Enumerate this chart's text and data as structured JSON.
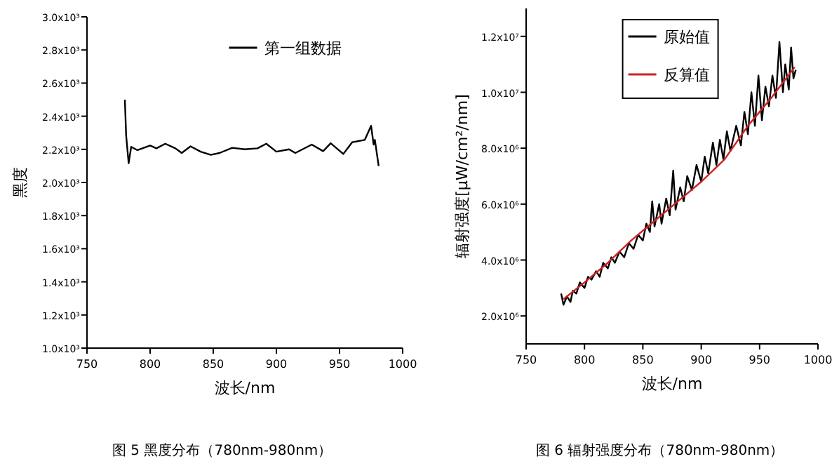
{
  "chart_data": [
    {
      "type": "line",
      "xlabel": "波长/nm",
      "ylabel": "黑度",
      "legend": "top right",
      "annotations": [
        "图 5  黑度分布（780nm-980nm）"
      ],
      "xlim": [
        750,
        1000
      ],
      "xticks": [
        750,
        800,
        850,
        900,
        950,
        1000
      ],
      "ylim": [
        1000,
        3000
      ],
      "yticks": [
        {
          "value": 1000,
          "label": "1.0x10³"
        },
        {
          "value": 1200,
          "label": "1.2x10³"
        },
        {
          "value": 1400,
          "label": "1.4x10³"
        },
        {
          "value": 1600,
          "label": "1.6x10³"
        },
        {
          "value": 1800,
          "label": "1.8x10³"
        },
        {
          "value": 2000,
          "label": "2.0x10³"
        },
        {
          "value": 2200,
          "label": "2.2x10³"
        },
        {
          "value": 2400,
          "label": "2.4x10³"
        },
        {
          "value": 2600,
          "label": "2.6x10³"
        },
        {
          "value": 2800,
          "label": "2.8x10³"
        },
        {
          "value": 3000,
          "label": "3.0x10³"
        }
      ],
      "series": [
        {
          "name": "第一组数据",
          "color": "#000000",
          "x": [
            780,
            781,
            783,
            785,
            790,
            800,
            805,
            812,
            820,
            825,
            832,
            840,
            848,
            855,
            865,
            875,
            885,
            892,
            900,
            910,
            915,
            928,
            937,
            943,
            953,
            960,
            970,
            975,
            977,
            978,
            981
          ],
          "values": [
            2500,
            2285,
            2116,
            2215,
            2195,
            2223,
            2206,
            2234,
            2206,
            2178,
            2218,
            2186,
            2167,
            2178,
            2209,
            2200,
            2206,
            2234,
            2186,
            2200,
            2178,
            2229,
            2189,
            2237,
            2172,
            2243,
            2257,
            2342,
            2229,
            2257,
            2099
          ]
        }
      ]
    },
    {
      "type": "line",
      "xlabel": "波长/nm",
      "ylabel": "辐射强度[μW/cm²/nm]",
      "legend": "top",
      "annotations": [
        "图 6  辐射强度分布（780nm-980nm）"
      ],
      "xlim": [
        750,
        1000
      ],
      "xticks": [
        750,
        800,
        850,
        900,
        950,
        1000
      ],
      "ylim": [
        1000000,
        13000000
      ],
      "yticks": [
        {
          "value": 2000000,
          "label": "2.0x10⁶"
        },
        {
          "value": 4000000,
          "label": "4.0x10⁶"
        },
        {
          "value": 6000000,
          "label": "6.0x10⁶"
        },
        {
          "value": 8000000,
          "label": "8.0x10⁶"
        },
        {
          "value": 10000000,
          "label": "1.0x10⁷"
        },
        {
          "value": 12000000,
          "label": "1.2x10⁷"
        }
      ],
      "series": [
        {
          "name": "原始值",
          "color": "#000000",
          "x": [
            780,
            782,
            785,
            788,
            790,
            793,
            796,
            800,
            803,
            806,
            810,
            813,
            816,
            820,
            823,
            826,
            830,
            834,
            838,
            842,
            846,
            850,
            853,
            856,
            858,
            860,
            864,
            866,
            870,
            873,
            876,
            878,
            882,
            885,
            888,
            892,
            896,
            900,
            903,
            906,
            910,
            913,
            916,
            919,
            922,
            925,
            930,
            934,
            937,
            940,
            943,
            946,
            949,
            952,
            955,
            958,
            961,
            964,
            967,
            970,
            972,
            975,
            977,
            979,
            981
          ],
          "values": [
            2800000,
            2400000,
            2700000,
            2500000,
            2900000,
            2800000,
            3200000,
            3000000,
            3400000,
            3300000,
            3600000,
            3400000,
            3900000,
            3700000,
            4100000,
            3900000,
            4300000,
            4100000,
            4600000,
            4400000,
            4900000,
            4700000,
            5300000,
            5000000,
            6100000,
            5200000,
            6000000,
            5300000,
            6200000,
            5600000,
            7200000,
            5800000,
            6600000,
            6100000,
            7000000,
            6500000,
            7400000,
            6800000,
            7700000,
            7100000,
            8200000,
            7400000,
            8300000,
            7600000,
            8600000,
            7900000,
            8800000,
            8100000,
            9300000,
            8500000,
            10000000,
            8800000,
            10600000,
            9000000,
            10200000,
            9500000,
            10600000,
            9800000,
            11800000,
            10000000,
            11000000,
            10100000,
            11600000,
            10500000,
            10800000
          ]
        },
        {
          "name": "反算值",
          "color": "#cc2222",
          "x": [
            782,
            800,
            820,
            840,
            860,
            880,
            900,
            920,
            940,
            950,
            960,
            980
          ],
          "values": [
            2600000,
            3200000,
            3900000,
            4700000,
            5400000,
            6100000,
            6800000,
            7600000,
            8800000,
            9300000,
            9800000,
            10900000
          ]
        }
      ]
    }
  ]
}
